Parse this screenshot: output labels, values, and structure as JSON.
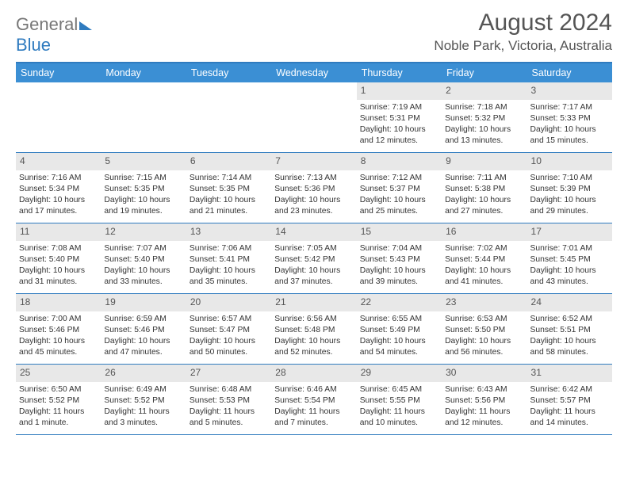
{
  "logo": {
    "part1": "General",
    "part2": "Blue"
  },
  "title": "August 2024",
  "location": "Noble Park, Victoria, Australia",
  "day_headers": [
    "Sunday",
    "Monday",
    "Tuesday",
    "Wednesday",
    "Thursday",
    "Friday",
    "Saturday"
  ],
  "colors": {
    "header_bg": "#3b8fd4",
    "rule": "#2f7bbf",
    "daynum_bg": "#e8e8e8",
    "text": "#333333",
    "title": "#555555"
  },
  "weeks": [
    [
      {
        "empty": true
      },
      {
        "empty": true
      },
      {
        "empty": true
      },
      {
        "empty": true
      },
      {
        "num": "1",
        "sunrise": "Sunrise: 7:19 AM",
        "sunset": "Sunset: 5:31 PM",
        "daylight": "Daylight: 10 hours and 12 minutes."
      },
      {
        "num": "2",
        "sunrise": "Sunrise: 7:18 AM",
        "sunset": "Sunset: 5:32 PM",
        "daylight": "Daylight: 10 hours and 13 minutes."
      },
      {
        "num": "3",
        "sunrise": "Sunrise: 7:17 AM",
        "sunset": "Sunset: 5:33 PM",
        "daylight": "Daylight: 10 hours and 15 minutes."
      }
    ],
    [
      {
        "num": "4",
        "sunrise": "Sunrise: 7:16 AM",
        "sunset": "Sunset: 5:34 PM",
        "daylight": "Daylight: 10 hours and 17 minutes."
      },
      {
        "num": "5",
        "sunrise": "Sunrise: 7:15 AM",
        "sunset": "Sunset: 5:35 PM",
        "daylight": "Daylight: 10 hours and 19 minutes."
      },
      {
        "num": "6",
        "sunrise": "Sunrise: 7:14 AM",
        "sunset": "Sunset: 5:35 PM",
        "daylight": "Daylight: 10 hours and 21 minutes."
      },
      {
        "num": "7",
        "sunrise": "Sunrise: 7:13 AM",
        "sunset": "Sunset: 5:36 PM",
        "daylight": "Daylight: 10 hours and 23 minutes."
      },
      {
        "num": "8",
        "sunrise": "Sunrise: 7:12 AM",
        "sunset": "Sunset: 5:37 PM",
        "daylight": "Daylight: 10 hours and 25 minutes."
      },
      {
        "num": "9",
        "sunrise": "Sunrise: 7:11 AM",
        "sunset": "Sunset: 5:38 PM",
        "daylight": "Daylight: 10 hours and 27 minutes."
      },
      {
        "num": "10",
        "sunrise": "Sunrise: 7:10 AM",
        "sunset": "Sunset: 5:39 PM",
        "daylight": "Daylight: 10 hours and 29 minutes."
      }
    ],
    [
      {
        "num": "11",
        "sunrise": "Sunrise: 7:08 AM",
        "sunset": "Sunset: 5:40 PM",
        "daylight": "Daylight: 10 hours and 31 minutes."
      },
      {
        "num": "12",
        "sunrise": "Sunrise: 7:07 AM",
        "sunset": "Sunset: 5:40 PM",
        "daylight": "Daylight: 10 hours and 33 minutes."
      },
      {
        "num": "13",
        "sunrise": "Sunrise: 7:06 AM",
        "sunset": "Sunset: 5:41 PM",
        "daylight": "Daylight: 10 hours and 35 minutes."
      },
      {
        "num": "14",
        "sunrise": "Sunrise: 7:05 AM",
        "sunset": "Sunset: 5:42 PM",
        "daylight": "Daylight: 10 hours and 37 minutes."
      },
      {
        "num": "15",
        "sunrise": "Sunrise: 7:04 AM",
        "sunset": "Sunset: 5:43 PM",
        "daylight": "Daylight: 10 hours and 39 minutes."
      },
      {
        "num": "16",
        "sunrise": "Sunrise: 7:02 AM",
        "sunset": "Sunset: 5:44 PM",
        "daylight": "Daylight: 10 hours and 41 minutes."
      },
      {
        "num": "17",
        "sunrise": "Sunrise: 7:01 AM",
        "sunset": "Sunset: 5:45 PM",
        "daylight": "Daylight: 10 hours and 43 minutes."
      }
    ],
    [
      {
        "num": "18",
        "sunrise": "Sunrise: 7:00 AM",
        "sunset": "Sunset: 5:46 PM",
        "daylight": "Daylight: 10 hours and 45 minutes."
      },
      {
        "num": "19",
        "sunrise": "Sunrise: 6:59 AM",
        "sunset": "Sunset: 5:46 PM",
        "daylight": "Daylight: 10 hours and 47 minutes."
      },
      {
        "num": "20",
        "sunrise": "Sunrise: 6:57 AM",
        "sunset": "Sunset: 5:47 PM",
        "daylight": "Daylight: 10 hours and 50 minutes."
      },
      {
        "num": "21",
        "sunrise": "Sunrise: 6:56 AM",
        "sunset": "Sunset: 5:48 PM",
        "daylight": "Daylight: 10 hours and 52 minutes."
      },
      {
        "num": "22",
        "sunrise": "Sunrise: 6:55 AM",
        "sunset": "Sunset: 5:49 PM",
        "daylight": "Daylight: 10 hours and 54 minutes."
      },
      {
        "num": "23",
        "sunrise": "Sunrise: 6:53 AM",
        "sunset": "Sunset: 5:50 PM",
        "daylight": "Daylight: 10 hours and 56 minutes."
      },
      {
        "num": "24",
        "sunrise": "Sunrise: 6:52 AM",
        "sunset": "Sunset: 5:51 PM",
        "daylight": "Daylight: 10 hours and 58 minutes."
      }
    ],
    [
      {
        "num": "25",
        "sunrise": "Sunrise: 6:50 AM",
        "sunset": "Sunset: 5:52 PM",
        "daylight": "Daylight: 11 hours and 1 minute."
      },
      {
        "num": "26",
        "sunrise": "Sunrise: 6:49 AM",
        "sunset": "Sunset: 5:52 PM",
        "daylight": "Daylight: 11 hours and 3 minutes."
      },
      {
        "num": "27",
        "sunrise": "Sunrise: 6:48 AM",
        "sunset": "Sunset: 5:53 PM",
        "daylight": "Daylight: 11 hours and 5 minutes."
      },
      {
        "num": "28",
        "sunrise": "Sunrise: 6:46 AM",
        "sunset": "Sunset: 5:54 PM",
        "daylight": "Daylight: 11 hours and 7 minutes."
      },
      {
        "num": "29",
        "sunrise": "Sunrise: 6:45 AM",
        "sunset": "Sunset: 5:55 PM",
        "daylight": "Daylight: 11 hours and 10 minutes."
      },
      {
        "num": "30",
        "sunrise": "Sunrise: 6:43 AM",
        "sunset": "Sunset: 5:56 PM",
        "daylight": "Daylight: 11 hours and 12 minutes."
      },
      {
        "num": "31",
        "sunrise": "Sunrise: 6:42 AM",
        "sunset": "Sunset: 5:57 PM",
        "daylight": "Daylight: 11 hours and 14 minutes."
      }
    ]
  ]
}
